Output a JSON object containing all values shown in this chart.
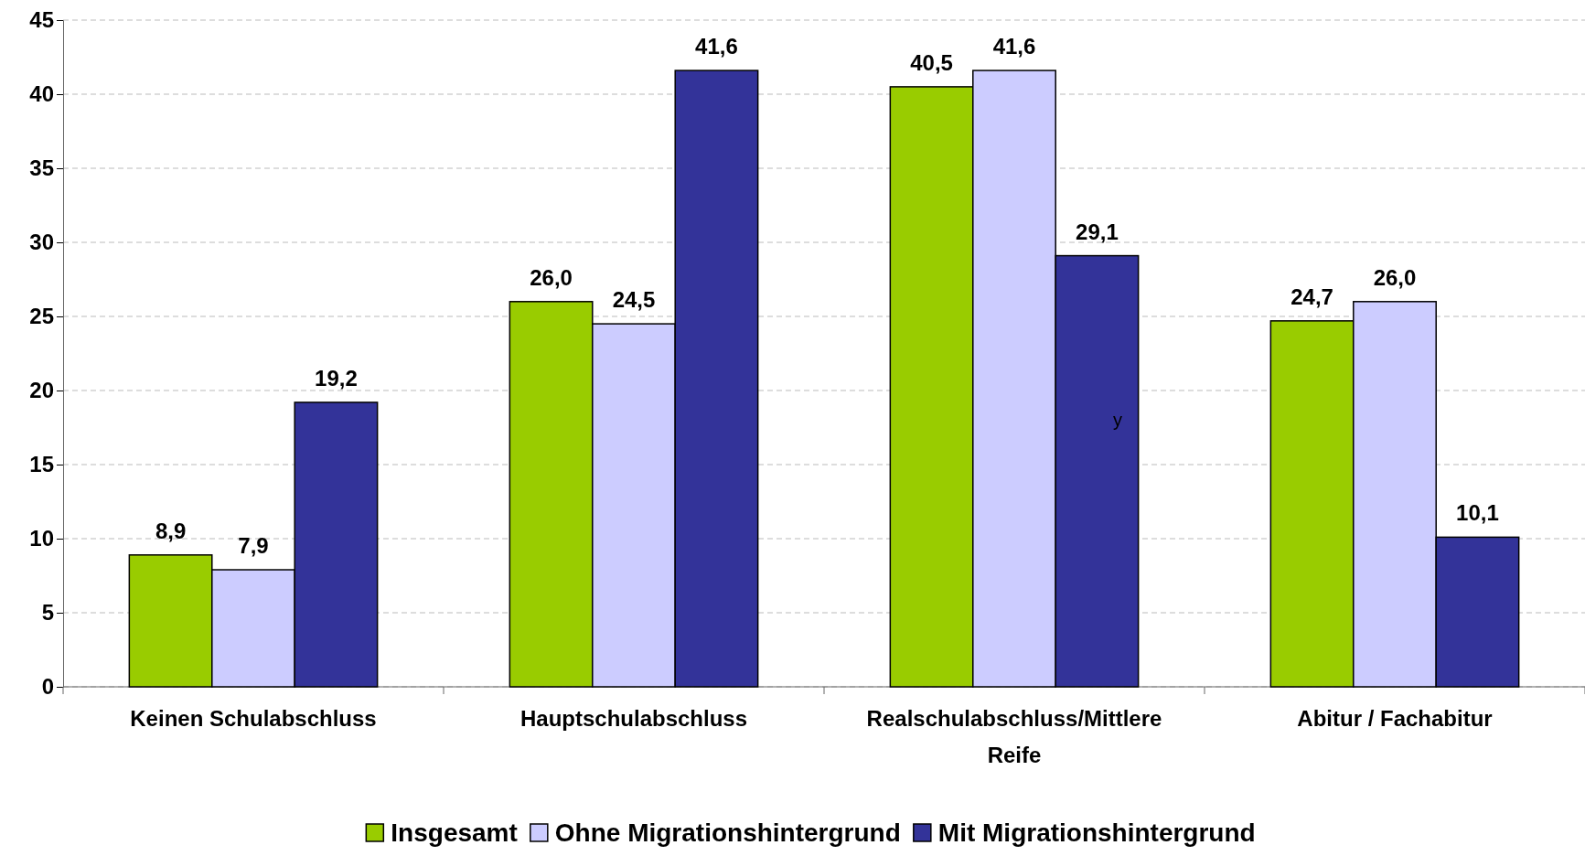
{
  "chart_data": {
    "type": "bar",
    "categories": [
      "Keinen Schulabschluss",
      "Hauptschulabschluss",
      "Realschulabschluss/Mittlere Reife",
      "Abitur / Fachabitur"
    ],
    "series": [
      {
        "name": "Insgesamt",
        "color": "#99cc00",
        "values": [
          8.9,
          26.0,
          40.5,
          24.7
        ],
        "value_labels": [
          "8,9",
          "26,0",
          "40,5",
          "24,7"
        ]
      },
      {
        "name": "Ohne Migrationshintergrund",
        "color": "#ccccff",
        "values": [
          7.9,
          24.5,
          41.6,
          26.0
        ],
        "value_labels": [
          "7,9",
          "24,5",
          "41,6",
          "26,0"
        ]
      },
      {
        "name": "Mit Migrationshintergrund",
        "color": "#333399",
        "values": [
          19.2,
          41.6,
          29.1,
          10.1
        ],
        "value_labels": [
          "19,2",
          "41,6",
          "29,1",
          "10,1"
        ]
      }
    ],
    "ylim": [
      0,
      45
    ],
    "yticks": [
      0,
      5,
      10,
      15,
      20,
      25,
      30,
      35,
      40,
      45
    ],
    "grid": "y",
    "legend": "bottom",
    "annotations": [
      "y"
    ]
  }
}
